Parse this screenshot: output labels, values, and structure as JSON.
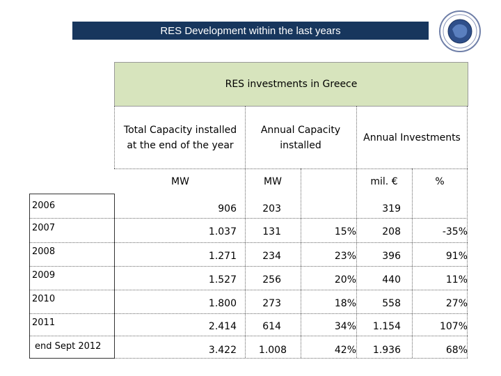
{
  "slide": {
    "title": "RES Development within the last years",
    "logo_label": "emblem"
  },
  "table": {
    "caption": "RES investments in Greece",
    "headers": {
      "total_capacity": [
        "Total Capacity installed",
        "at the end of the year"
      ],
      "annual_capacity": [
        "Annual Capacity",
        "installed"
      ],
      "annual_investments": "Annual Investments"
    },
    "units": {
      "total_capacity": "MW",
      "annual_capacity": "MW",
      "investment": "mil. €",
      "investment_pct": "%"
    },
    "rows": [
      {
        "year": "2006",
        "total": "906",
        "annual": "203",
        "annual_pct": "",
        "invest": "319",
        "invest_pct": ""
      },
      {
        "year": "2007",
        "total": "1.037",
        "annual": "131",
        "annual_pct": "15%",
        "invest": "208",
        "invest_pct": "-35%"
      },
      {
        "year": "2008",
        "total": "1.271",
        "annual": "234",
        "annual_pct": "23%",
        "invest": "396",
        "invest_pct": "91%"
      },
      {
        "year": "2009",
        "total": "1.527",
        "annual": "256",
        "annual_pct": "20%",
        "invest": "440",
        "invest_pct": "11%"
      },
      {
        "year": "2010",
        "total": "1.800",
        "annual": "273",
        "annual_pct": "18%",
        "invest": "558",
        "invest_pct": "27%"
      },
      {
        "year": "2011",
        "total": "2.414",
        "annual": "614",
        "annual_pct": "34%",
        "invest": "1.154",
        "invest_pct": "107%"
      },
      {
        "year": "end Sept 2012",
        "total": "3.422",
        "annual": "1.008",
        "annual_pct": "42%",
        "invest": "1.936",
        "invest_pct": "68%"
      }
    ]
  }
}
